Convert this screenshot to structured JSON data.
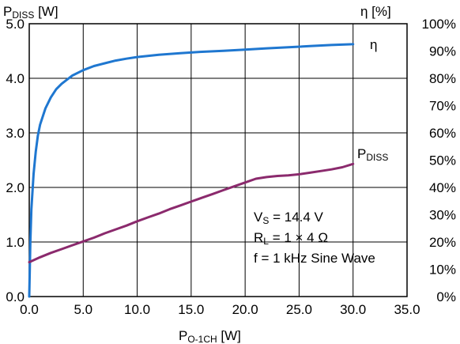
{
  "chart_data": {
    "type": "line",
    "x_axis": {
      "label_main": "P",
      "label_sub": "O-1CH",
      "label_unit": " [W]",
      "min": 0,
      "max": 35,
      "step": 5,
      "tick_labels": [
        "0.0",
        "5.0",
        "10.0",
        "15.0",
        "20.0",
        "25.0",
        "30.0",
        "35.0"
      ]
    },
    "y_left_axis": {
      "label_main": "P",
      "label_sub": "DISS",
      "label_unit": " [W]",
      "min": 0,
      "max": 5,
      "step": 1,
      "tick_labels": [
        "0.0",
        "1.0",
        "2.0",
        "3.0",
        "4.0",
        "5.0"
      ]
    },
    "y_right_axis": {
      "label": "η [%]",
      "min": 0,
      "max": 100,
      "step": 10,
      "tick_labels": [
        "0%",
        "10%",
        "20%",
        "30%",
        "40%",
        "50%",
        "60%",
        "70%",
        "80%",
        "90%",
        "100%"
      ]
    },
    "grid": true,
    "series": [
      {
        "name": "η",
        "axis": "right",
        "color": "#1f77d0",
        "x": [
          0,
          0.1,
          0.2,
          0.4,
          0.6,
          0.8,
          1.0,
          1.5,
          2.0,
          2.5,
          3.0,
          3.5,
          4.0,
          5.0,
          6.0,
          7.0,
          8.0,
          9.0,
          10.0,
          12.0,
          14.0,
          16.0,
          18.0,
          20.0,
          22.0,
          24.0,
          26.0,
          28.0,
          30.0
        ],
        "y": [
          0,
          20,
          32,
          45,
          53,
          59,
          63,
          69,
          73,
          76,
          78,
          79.5,
          81,
          83,
          84.5,
          85.5,
          86.5,
          87.2,
          87.8,
          88.6,
          89.2,
          89.7,
          90.1,
          90.5,
          91,
          91.4,
          91.8,
          92.2,
          92.5
        ]
      },
      {
        "name": "P",
        "name_sub": "DISS",
        "axis": "left",
        "color": "#8b2a6d",
        "x": [
          0,
          1,
          2,
          3,
          4,
          5,
          6,
          7,
          8,
          9,
          10,
          11,
          12,
          13,
          14,
          15,
          16,
          17,
          18,
          19,
          20,
          21,
          22,
          23,
          24,
          25,
          26,
          27,
          28,
          29,
          30
        ],
        "y": [
          0.63,
          0.72,
          0.8,
          0.87,
          0.94,
          1.01,
          1.08,
          1.16,
          1.23,
          1.3,
          1.38,
          1.45,
          1.52,
          1.6,
          1.67,
          1.74,
          1.81,
          1.88,
          1.95,
          2.02,
          2.09,
          2.16,
          2.19,
          2.21,
          2.22,
          2.24,
          2.27,
          2.3,
          2.33,
          2.37,
          2.43
        ]
      }
    ],
    "annotations": [
      {
        "main": "V",
        "sub": "S",
        "rest": " = 14.4 V"
      },
      {
        "main": "R",
        "sub": "L",
        "rest": " = 1 × 4 Ω"
      },
      {
        "main": "f = 1 kHz Sine Wave",
        "sub": "",
        "rest": ""
      }
    ]
  }
}
